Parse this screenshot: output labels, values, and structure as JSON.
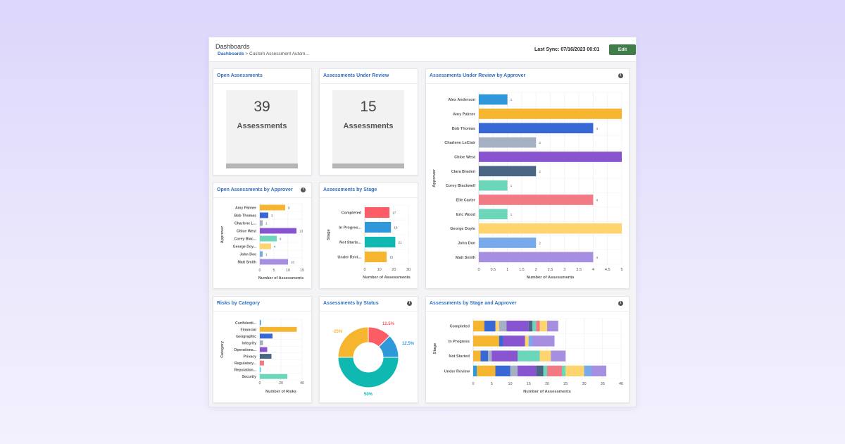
{
  "header": {
    "title": "Dashboards",
    "breadcrumb": [
      "Dashboards",
      "Custom Assessment Autom..."
    ],
    "breadcrumb_sep": ">",
    "last_sync": "Last Sync: 07/16/2023 00:01",
    "edit_label": "Edit",
    "edit_color": "#3f7d4a"
  },
  "cards": {
    "open": {
      "title": "Open Assessments",
      "value": "39",
      "label": "Assessments"
    },
    "review": {
      "title": "Assessments Under Review",
      "value": "15",
      "label": "Assessments"
    },
    "review_by_approver": {
      "title": "Assessments Under Review by Approver"
    },
    "open_by_approver": {
      "title": "Open Assessments by Approver"
    },
    "by_stage": {
      "title": "Assessments by Stage"
    },
    "risks": {
      "title": "Risks by Category"
    },
    "by_status": {
      "title": "Assessments by Status"
    },
    "stage_approver": {
      "title": "Assessments by Stage and Approver"
    }
  },
  "chart_data": [
    {
      "id": "review_by_approver",
      "type": "bar",
      "orientation": "horizontal",
      "ylabel": "Approver",
      "xlabel": "Number of Assessments",
      "xlim": [
        0,
        5
      ],
      "ticks": [
        "0",
        "0.5",
        "1",
        "1.5",
        "2",
        "2.5",
        "3",
        "3.5",
        "4",
        "4.5",
        "5"
      ],
      "grid": true,
      "categories": [
        "Alex Anderson",
        "Amy Palmer",
        "Bob Thomas",
        "Charlene LeClair",
        "Chloe West",
        "Clara Braden",
        "Corey Blackwell",
        "Elle Carter",
        "Eric Wood",
        "George Doyle",
        "John Doe",
        "Matt Smith"
      ],
      "values": [
        1,
        5,
        4,
        2,
        5,
        2,
        1,
        4,
        1,
        5,
        2,
        4
      ],
      "colors": [
        "#2e98db",
        "#f6b52f",
        "#3867d6",
        "#a5b1c2",
        "#8854d0",
        "#4b6584",
        "#6bd6b9",
        "#f27a85",
        "#6bd6b9",
        "#fed46e",
        "#78aaeb",
        "#a68fe0"
      ]
    },
    {
      "id": "open_by_approver",
      "type": "bar",
      "orientation": "horizontal",
      "ylabel": "Approver",
      "xlabel": "Number of Assessments",
      "xlim": [
        0,
        15
      ],
      "ticks": [
        "0",
        "5",
        "10",
        "15"
      ],
      "grid": true,
      "categories": [
        "Amy Palmer",
        "Bob Thomas",
        "Charlene L...",
        "Chloe West",
        "Corey Blac...",
        "George Doy...",
        "John Doe",
        "Matt Smith"
      ],
      "values": [
        9,
        3,
        1,
        13,
        6,
        4,
        1,
        10
      ],
      "colors": [
        "#f6b52f",
        "#3867d6",
        "#a5b1c2",
        "#8854d0",
        "#6bd6b9",
        "#fed46e",
        "#78aaeb",
        "#a68fe0"
      ]
    },
    {
      "id": "by_stage",
      "type": "bar",
      "orientation": "horizontal",
      "ylabel": "Stage",
      "xlabel": "Number of Assessments",
      "xlim": [
        0,
        30
      ],
      "ticks": [
        "0",
        "10",
        "20",
        "30"
      ],
      "grid": true,
      "categories": [
        "Completed",
        "In Progres...",
        "Not Starte...",
        "Under Revi..."
      ],
      "values": [
        17,
        18,
        21,
        15
      ],
      "colors": [
        "#fc5c65",
        "#2e98db",
        "#0fb9b1",
        "#f6b52f"
      ]
    },
    {
      "id": "risks",
      "type": "bar",
      "orientation": "horizontal",
      "ylabel": "Category",
      "xlabel": "Number of Risks",
      "xlim": [
        0,
        40
      ],
      "ticks": [
        "0",
        "20",
        "40"
      ],
      "grid": true,
      "categories": [
        "Confidenti...",
        "Financial",
        "Geographic",
        "Integrity",
        "Operationa...",
        "Privacy",
        "Regulatory...",
        "Reputation...",
        "Security"
      ],
      "values": [
        1,
        35,
        12,
        3,
        7,
        11,
        4,
        1,
        26
      ],
      "colors": [
        "#2e98db",
        "#f6b52f",
        "#3867d6",
        "#a5b1c2",
        "#8854d0",
        "#4b6584",
        "#f27a85",
        "#45d0e8",
        "#6bd6b9"
      ]
    },
    {
      "id": "by_status",
      "type": "pie",
      "donut": true,
      "values": [
        12.5,
        12.5,
        50,
        25
      ],
      "labels": [
        "12.5%",
        "12.5%",
        "50%",
        "25%"
      ],
      "colors": [
        "#fc5c65",
        "#2e98db",
        "#0fb9b1",
        "#f6b52f"
      ]
    },
    {
      "id": "stage_approver",
      "type": "bar",
      "orientation": "horizontal",
      "stacked": true,
      "ylabel": "Stage",
      "xlabel": "Number of Assessments",
      "xlim": [
        0,
        40
      ],
      "ticks": [
        "0",
        "5",
        "10",
        "15",
        "20",
        "25",
        "30",
        "35",
        "40"
      ],
      "grid": true,
      "categories": [
        "Completed",
        "In Progress",
        "Not Started",
        "Under Review"
      ],
      "series": [
        {
          "color": "#2e98db",
          "values": [
            0,
            0,
            0,
            1
          ]
        },
        {
          "color": "#f6b52f",
          "values": [
            3,
            7,
            2,
            5
          ]
        },
        {
          "color": "#3867d6",
          "values": [
            3,
            1,
            2,
            4
          ]
        },
        {
          "color": "#fed46e",
          "values": [
            1,
            0,
            0,
            0
          ]
        },
        {
          "color": "#a5b1c2",
          "values": [
            2,
            0,
            1,
            2
          ]
        },
        {
          "color": "#8854d0",
          "values": [
            6,
            6,
            7,
            5
          ]
        },
        {
          "color": "#4b6584",
          "values": [
            1,
            0,
            0,
            2
          ]
        },
        {
          "color": "#6bd6b9",
          "values": [
            1,
            0,
            6,
            1
          ]
        },
        {
          "color": "#f27a85",
          "values": [
            1,
            0,
            0,
            4
          ]
        },
        {
          "color": "#6bd6b9",
          "values": [
            0,
            0,
            0,
            1
          ]
        },
        {
          "color": "#fed46e",
          "values": [
            2,
            1,
            3,
            5
          ]
        },
        {
          "color": "#78aaeb",
          "values": [
            0,
            1,
            0,
            2
          ]
        },
        {
          "color": "#a68fe0",
          "values": [
            3,
            6,
            4,
            4
          ]
        }
      ]
    }
  ]
}
